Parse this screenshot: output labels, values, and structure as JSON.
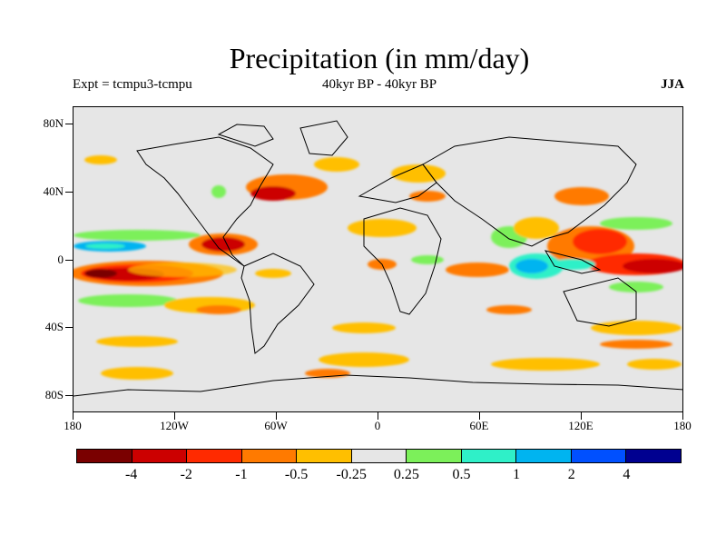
{
  "title": "Precipitation (in mm/day)",
  "subtitle_left": "Expt = tcmpu3-tcmpu",
  "subtitle_center": "40kyr BP - 40kyr BP",
  "subtitle_right": "JJA",
  "lat_labels": [
    "80N",
    "40N",
    "0",
    "40S",
    "80S"
  ],
  "lon_labels": [
    "180",
    "120W",
    "60W",
    "0",
    "60E",
    "120E",
    "180"
  ],
  "colorbar": {
    "colors": [
      "#7a0000",
      "#cc0000",
      "#ff2a00",
      "#ff7a00",
      "#ffbf00",
      "#e6e6e6",
      "#7cf05a",
      "#2ff0c8",
      "#00b4f0",
      "#0050ff",
      "#000090"
    ],
    "labels": [
      "-4",
      "-2",
      "-1",
      "-0.5",
      "-0.25",
      "0.25",
      "0.5",
      "1",
      "2",
      "4"
    ]
  }
}
